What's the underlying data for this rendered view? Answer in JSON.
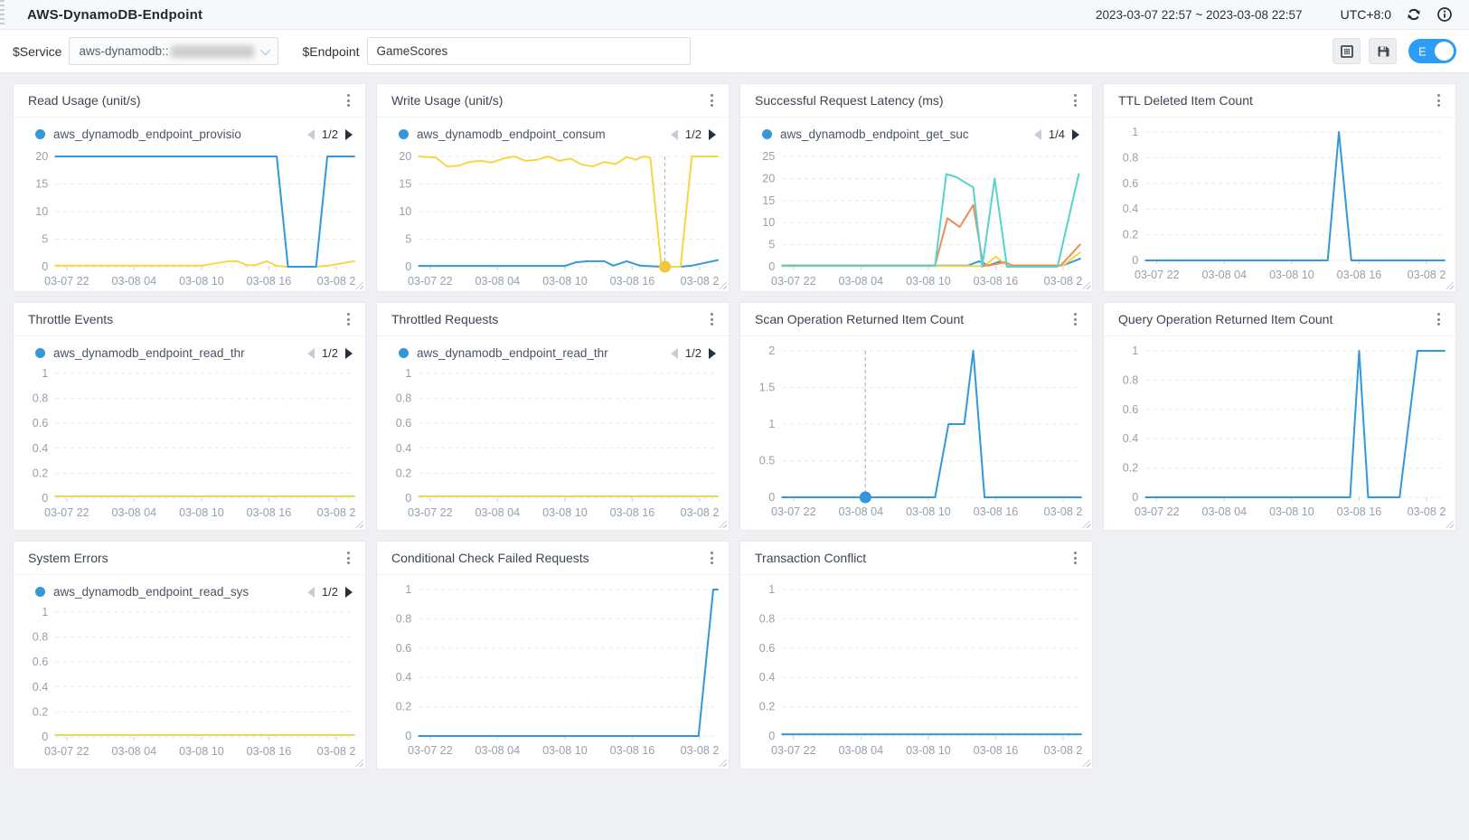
{
  "header": {
    "title": "AWS-DynamoDB-Endpoint",
    "time_range": "2023-03-07 22:57 ~ 2023-03-08 22:57",
    "timezone": "UTC+8:0"
  },
  "filter_bar": {
    "service_label": "$Service",
    "service_value": "aws-dynamodb::",
    "endpoint_label": "$Endpoint",
    "endpoint_value": "GameScores",
    "edit_toggle_label": "E"
  },
  "icons": {
    "drawer_handle": "dotted-drag-strip",
    "refresh": "circular-arrows",
    "info": "i-in-circle",
    "layout_grid": "grid-square",
    "save": "floppy-disk",
    "panel_menu": "kebab-3-dots",
    "legend_prev": "triangle-left",
    "legend_next": "triangle-right",
    "select_chevron": "chevron-down"
  },
  "colors": {
    "blue": "#3398db",
    "yellow": "#f5d742",
    "flatYellow": "#e6d65a",
    "cyan": "#57d3cd",
    "orange": "#ee8c55",
    "markerYellow": "#efc63d",
    "grid": "#e5e9ef",
    "axisText": "#95a0ae",
    "dashedGuide": "#b3bac4",
    "toggleBlue": "#2d9cf2"
  },
  "x_ticks": [
    "03-07 22",
    "03-08 04",
    "03-08 10",
    "03-08 16",
    "03-08 2"
  ],
  "chart_data": [
    {
      "id": "read-usage",
      "row": 1,
      "type": "line",
      "title": "Read Usage (unit/s)",
      "legend": {
        "name": "aws_dynamodb_endpoint_provisio",
        "page": "1/2"
      },
      "y_max": 20,
      "y_ticks": [
        "20",
        "15",
        "10",
        "5",
        "0"
      ],
      "series": [
        {
          "color": "yellow",
          "points": [
            [
              -1,
              0.2
            ],
            [
              12,
              0.2
            ],
            [
              13.5,
              0.7
            ],
            [
              14.5,
              1
            ],
            [
              15.2,
              1
            ],
            [
              16,
              0.3
            ],
            [
              16.8,
              0.3
            ],
            [
              17.8,
              1
            ],
            [
              18.7,
              0.15
            ],
            [
              19.7,
              0
            ],
            [
              22.3,
              0
            ],
            [
              23.3,
              0.2
            ],
            [
              25.6,
              1
            ]
          ]
        },
        {
          "name": "aws_dynamodb_endpoint_provisio",
          "color": "blue",
          "points": [
            [
              -1,
              20
            ],
            [
              18.7,
              20
            ],
            [
              19.7,
              0
            ],
            [
              22.2,
              0
            ],
            [
              23.2,
              20
            ],
            [
              25.6,
              20
            ]
          ]
        }
      ]
    },
    {
      "id": "write-usage",
      "row": 1,
      "type": "line",
      "title": "Write Usage (unit/s)",
      "legend": {
        "name": "aws_dynamodb_endpoint_consum",
        "page": "1/2"
      },
      "y_max": 20,
      "y_ticks": [
        "20",
        "15",
        "10",
        "5",
        "0"
      ],
      "marker": {
        "h": 20.9,
        "v": 0,
        "color": "markerYellow"
      },
      "series": [
        {
          "color": "blue",
          "points": [
            [
              -1,
              0.15
            ],
            [
              12,
              0.15
            ],
            [
              13,
              0.8
            ],
            [
              14,
              1
            ],
            [
              15.5,
              1
            ],
            [
              16.3,
              0.2
            ],
            [
              17.5,
              1
            ],
            [
              18.7,
              0.2
            ],
            [
              19.6,
              0.1
            ],
            [
              20.6,
              0
            ],
            [
              22.3,
              0
            ],
            [
              23.3,
              0.2
            ],
            [
              25.6,
              1.2
            ]
          ]
        },
        {
          "name": "aws_dynamodb_endpoint_consum",
          "color": "yellow",
          "points": [
            [
              -1,
              20
            ],
            [
              0.5,
              19.8
            ],
            [
              1.5,
              18.2
            ],
            [
              2.5,
              18.3
            ],
            [
              3.5,
              19
            ],
            [
              4.5,
              19.2
            ],
            [
              5.5,
              18.9
            ],
            [
              6.5,
              19.6
            ],
            [
              7.5,
              20
            ],
            [
              8.5,
              19.2
            ],
            [
              9.5,
              19.4
            ],
            [
              10.5,
              20
            ],
            [
              11.5,
              19.2
            ],
            [
              12.5,
              19.6
            ],
            [
              13.5,
              18.5
            ],
            [
              14.5,
              18.2
            ],
            [
              15.5,
              19
            ],
            [
              16.5,
              18.6
            ],
            [
              17.5,
              19.9
            ],
            [
              18.3,
              19.4
            ],
            [
              19,
              20
            ],
            [
              19.6,
              19.8
            ],
            [
              20.6,
              0
            ],
            [
              22.3,
              0
            ],
            [
              23.3,
              20
            ],
            [
              25.6,
              20
            ]
          ]
        }
      ]
    },
    {
      "id": "successful-request-latency",
      "row": 1,
      "type": "line",
      "title": "Successful Request Latency (ms)",
      "legend": {
        "name": "aws_dynamodb_endpoint_get_suc",
        "page": "1/4"
      },
      "y_max": 25,
      "y_ticks": [
        "25",
        "20",
        "15",
        "10",
        "5",
        "0"
      ],
      "series": [
        {
          "name": "aws_dynamodb_endpoint_get_suc",
          "color": "blue",
          "points": [
            [
              -1,
              0.25
            ],
            [
              15.5,
              0.25
            ],
            [
              16.5,
              1.2
            ],
            [
              17.4,
              0.3
            ],
            [
              18.4,
              1.2
            ],
            [
              19.3,
              0.3
            ],
            [
              24,
              0.3
            ],
            [
              25.5,
              1.8
            ]
          ]
        },
        {
          "color": "yellow",
          "points": [
            [
              -1,
              0.15
            ],
            [
              17,
              0.15
            ],
            [
              18,
              2.3
            ],
            [
              19,
              0.3
            ],
            [
              24,
              0.3
            ],
            [
              25.5,
              3.2
            ]
          ]
        },
        {
          "color": "orange",
          "points": [
            [
              -1,
              0.3
            ],
            [
              12.6,
              0.3
            ],
            [
              13.7,
              11
            ],
            [
              14.8,
              9
            ],
            [
              16,
              14
            ],
            [
              16.9,
              0.2
            ],
            [
              17.8,
              0.5
            ],
            [
              18.8,
              1
            ],
            [
              19.5,
              0.3
            ],
            [
              23.8,
              0.3
            ],
            [
              25.5,
              5
            ]
          ]
        },
        {
          "color": "cyan",
          "points": [
            [
              -1,
              0.2
            ],
            [
              12.6,
              0.2
            ],
            [
              13.6,
              21
            ],
            [
              14.5,
              20.3
            ],
            [
              16,
              18
            ],
            [
              16.8,
              0
            ],
            [
              17.9,
              20
            ],
            [
              19,
              0
            ],
            [
              23.5,
              0
            ],
            [
              25.4,
              21
            ]
          ]
        }
      ]
    },
    {
      "id": "ttl-deleted-item-count",
      "row": 1,
      "type": "line",
      "title": "TTL Deleted Item Count",
      "y_max": 1,
      "y_ticks": [
        "1",
        "0.8",
        "0.6",
        "0.4",
        "0.2",
        "0"
      ],
      "series": [
        {
          "color": "blue",
          "points": [
            [
              -1,
              0
            ],
            [
              15.2,
              0
            ],
            [
              16.2,
              1
            ],
            [
              17.3,
              0
            ],
            [
              25.6,
              0
            ]
          ]
        }
      ]
    },
    {
      "id": "throttle-events",
      "row": 2,
      "type": "line",
      "title": "Throttle Events",
      "legend": {
        "name": "aws_dynamodb_endpoint_read_thr",
        "page": "1/2"
      },
      "y_max": 1,
      "y_ticks": [
        "1",
        "0.8",
        "0.6",
        "0.4",
        "0.2",
        "0"
      ],
      "series": [
        {
          "name": "aws_dynamodb_endpoint_read_thr",
          "color": "flatYellow",
          "points": [
            [
              -1,
              0.015
            ],
            [
              25.6,
              0.015
            ]
          ]
        }
      ]
    },
    {
      "id": "throttled-requests",
      "row": 2,
      "type": "line",
      "title": "Throttled Requests",
      "legend": {
        "name": "aws_dynamodb_endpoint_read_thr",
        "page": "1/2"
      },
      "y_max": 1,
      "y_ticks": [
        "1",
        "0.8",
        "0.6",
        "0.4",
        "0.2",
        "0"
      ],
      "series": [
        {
          "name": "aws_dynamodb_endpoint_read_thr",
          "color": "flatYellow",
          "points": [
            [
              -1,
              0.015
            ],
            [
              25.6,
              0.015
            ]
          ]
        }
      ]
    },
    {
      "id": "scan-operation-returned-item-count",
      "row": 2,
      "type": "line",
      "title": "Scan Operation Returned Item Count",
      "y_max": 2,
      "y_ticks": [
        "2",
        "1.5",
        "1",
        "0.5",
        "0"
      ],
      "marker": {
        "h": 6.4,
        "v": 0,
        "color": "blue"
      },
      "series": [
        {
          "color": "blue",
          "points": [
            [
              -1,
              0
            ],
            [
              12.6,
              0
            ],
            [
              13.8,
              1
            ],
            [
              15.2,
              1
            ],
            [
              16,
              2
            ],
            [
              17,
              0
            ],
            [
              25.6,
              0
            ]
          ]
        }
      ]
    },
    {
      "id": "query-operation-returned-item-count",
      "row": 2,
      "type": "line",
      "title": "Query Operation Returned Item Count",
      "y_max": 1,
      "y_ticks": [
        "1",
        "0.8",
        "0.6",
        "0.4",
        "0.2",
        "0"
      ],
      "series": [
        {
          "color": "blue",
          "points": [
            [
              -1,
              0
            ],
            [
              17.2,
              0
            ],
            [
              18,
              1
            ],
            [
              18.8,
              0
            ],
            [
              21.6,
              0
            ],
            [
              23.2,
              1
            ],
            [
              25.6,
              1
            ]
          ]
        }
      ]
    },
    {
      "id": "system-errors",
      "row": 3,
      "type": "line",
      "title": "System Errors",
      "legend": {
        "name": "aws_dynamodb_endpoint_read_sys",
        "page": "1/2"
      },
      "y_max": 1,
      "y_ticks": [
        "1",
        "0.8",
        "0.6",
        "0.4",
        "0.2",
        "0"
      ],
      "series": [
        {
          "name": "aws_dynamodb_endpoint_read_sys",
          "color": "flatYellow",
          "points": [
            [
              -1,
              0.015
            ],
            [
              25.6,
              0.015
            ]
          ]
        }
      ]
    },
    {
      "id": "conditional-check-failed-requests",
      "row": 3,
      "type": "line",
      "title": "Conditional Check Failed Requests",
      "y_max": 1,
      "y_ticks": [
        "1",
        "0.8",
        "0.6",
        "0.4",
        "0.2",
        "0"
      ],
      "series": [
        {
          "color": "blue",
          "points": [
            [
              -1,
              0
            ],
            [
              23.9,
              0
            ],
            [
              25.2,
              1
            ],
            [
              25.6,
              1
            ]
          ]
        }
      ]
    },
    {
      "id": "transaction-conflict",
      "row": 3,
      "type": "line",
      "title": "Transaction Conflict",
      "y_max": 1,
      "y_ticks": [
        "1",
        "0.8",
        "0.6",
        "0.4",
        "0.2",
        "0"
      ],
      "series": [
        {
          "color": "blue",
          "points": [
            [
              -1,
              0.012
            ],
            [
              25.6,
              0.012
            ]
          ]
        }
      ]
    }
  ]
}
